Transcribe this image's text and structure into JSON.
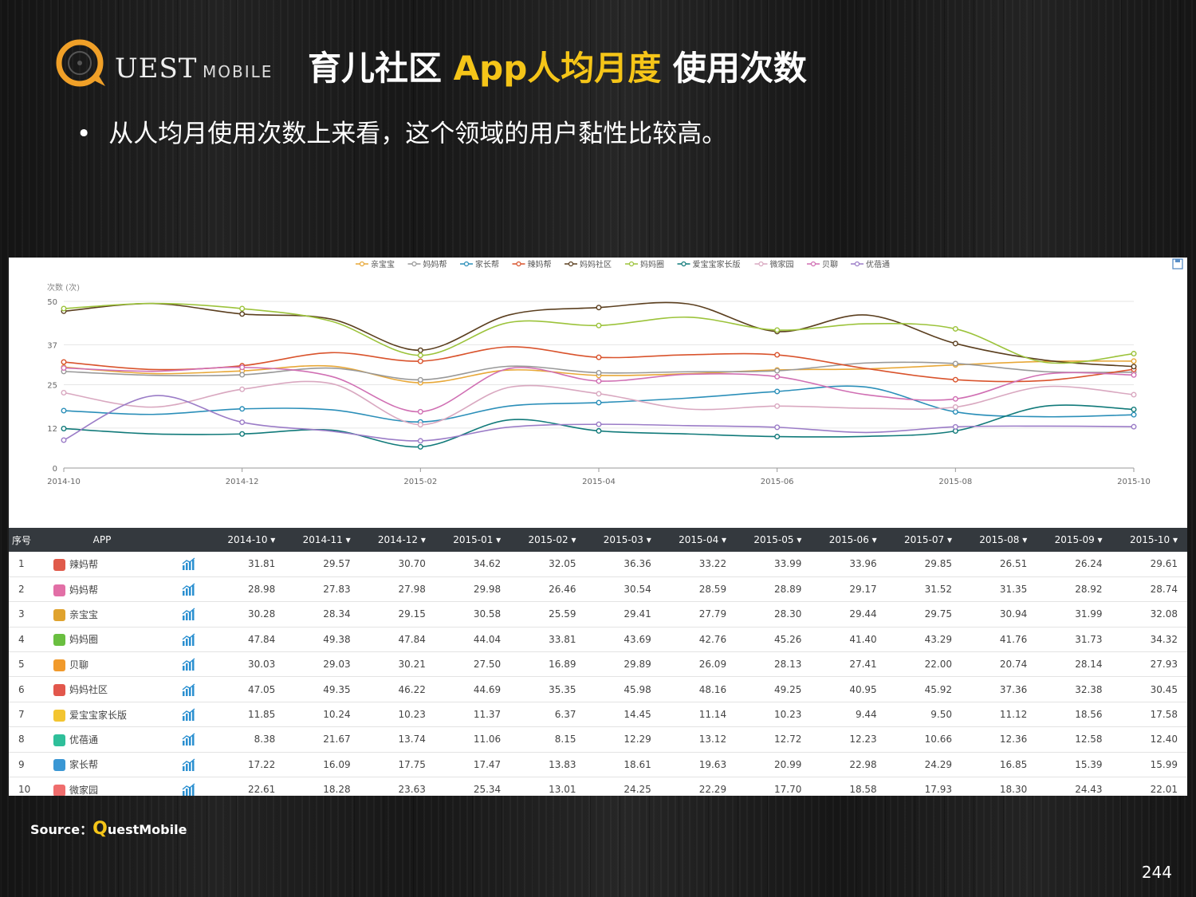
{
  "header": {
    "logo_q": "Q",
    "logo_text": "UEST",
    "logo_sub": "MOBILE",
    "title_part1": "育儿社区 ",
    "title_highlight": "App人均月度",
    "title_part2": " 使用次数"
  },
  "bullet": {
    "dot": "•",
    "text": "从人均月使用次数上来看，这个领域的用户黏性比较高。"
  },
  "colors": {
    "accent": "#f5c518",
    "table_header_bg": "#34393e"
  },
  "chart_data": {
    "type": "line",
    "ylabel": "次数 (次)",
    "yticks": [
      0,
      12,
      25,
      37,
      50
    ],
    "ylim": [
      0,
      50
    ],
    "x": [
      "2014-10",
      "2014-11",
      "2014-12",
      "2015-01",
      "2015-02",
      "2015-03",
      "2015-04",
      "2015-05",
      "2015-06",
      "2015-07",
      "2015-08",
      "2015-09",
      "2015-10"
    ],
    "xtick_labels": [
      "2014-10",
      "2014-12",
      "2015-02",
      "2015-04",
      "2015-06",
      "2015-08",
      "2015-10"
    ],
    "legend_position": "top-center",
    "series": [
      {
        "name": "亲宝宝",
        "color": "#e8a838",
        "values": [
          30.28,
          28.34,
          29.15,
          30.58,
          25.59,
          29.41,
          27.79,
          28.3,
          29.44,
          29.75,
          30.94,
          31.99,
          32.08
        ]
      },
      {
        "name": "妈妈帮",
        "color": "#999999",
        "values": [
          28.98,
          27.83,
          27.98,
          29.98,
          26.46,
          30.54,
          28.59,
          28.89,
          29.17,
          31.52,
          31.35,
          28.92,
          28.74
        ]
      },
      {
        "name": "家长帮",
        "color": "#2b8fb9",
        "values": [
          17.22,
          16.09,
          17.75,
          17.47,
          13.83,
          18.61,
          19.63,
          20.99,
          22.98,
          24.29,
          16.85,
          15.39,
          15.99
        ]
      },
      {
        "name": "辣妈帮",
        "color": "#d9532c",
        "values": [
          31.81,
          29.57,
          30.7,
          34.62,
          32.05,
          36.36,
          33.22,
          33.99,
          33.96,
          29.85,
          26.51,
          26.24,
          29.61
        ]
      },
      {
        "name": "妈妈社区",
        "color": "#5b3f1f",
        "values": [
          47.05,
          49.35,
          46.22,
          44.69,
          35.35,
          45.98,
          48.16,
          49.25,
          40.95,
          45.92,
          37.36,
          32.38,
          30.45
        ]
      },
      {
        "name": "妈妈圈",
        "color": "#9cc33b",
        "values": [
          47.84,
          49.38,
          47.84,
          44.04,
          33.81,
          43.69,
          42.76,
          45.26,
          41.4,
          43.29,
          41.76,
          31.73,
          34.32
        ]
      },
      {
        "name": "爱宝宝家长版",
        "color": "#117a7a",
        "values": [
          11.85,
          10.24,
          10.23,
          11.37,
          6.37,
          14.45,
          11.14,
          10.23,
          9.44,
          9.5,
          11.12,
          18.56,
          17.58
        ]
      },
      {
        "name": "微家园",
        "color": "#d9a8c0",
        "values": [
          22.61,
          18.28,
          23.63,
          25.34,
          13.01,
          24.25,
          22.29,
          17.7,
          18.58,
          17.93,
          18.3,
          24.43,
          22.01
        ]
      },
      {
        "name": "贝聊",
        "color": "#d06fb3",
        "values": [
          30.03,
          29.03,
          30.21,
          27.5,
          16.89,
          29.89,
          26.09,
          28.13,
          27.41,
          22.0,
          20.74,
          28.14,
          27.93
        ]
      },
      {
        "name": "优蓓通",
        "color": "#9b7cc7",
        "values": [
          8.38,
          21.67,
          13.74,
          11.06,
          8.15,
          12.29,
          13.12,
          12.72,
          12.23,
          10.66,
          12.36,
          12.58,
          12.4
        ]
      }
    ]
  },
  "table": {
    "col_index": "序号",
    "col_app": "APP",
    "months": [
      "2014-10 ▾",
      "2014-11 ▾",
      "2014-12 ▾",
      "2015-01 ▾",
      "2015-02 ▾",
      "2015-03 ▾",
      "2015-04 ▾",
      "2015-05 ▾",
      "2015-06 ▾",
      "2015-07 ▾",
      "2015-08 ▾",
      "2015-09 ▾",
      "2015-10 ▾"
    ],
    "rows": [
      {
        "idx": "1",
        "name": "辣妈帮",
        "icon": "cube-icon",
        "icon_color": "#e05a4a",
        "values": [
          "31.81",
          "29.57",
          "30.70",
          "34.62",
          "32.05",
          "36.36",
          "33.22",
          "33.99",
          "33.96",
          "29.85",
          "26.51",
          "26.24",
          "29.61"
        ]
      },
      {
        "idx": "2",
        "name": "妈妈帮",
        "icon": "bang-icon",
        "icon_color": "#e26fa6",
        "values": [
          "28.98",
          "27.83",
          "27.98",
          "29.98",
          "26.46",
          "30.54",
          "28.59",
          "28.89",
          "29.17",
          "31.52",
          "31.35",
          "28.92",
          "28.74"
        ]
      },
      {
        "idx": "3",
        "name": "亲宝宝",
        "icon": "face-icon",
        "icon_color": "#e0a32e",
        "values": [
          "30.28",
          "28.34",
          "29.15",
          "30.58",
          "25.59",
          "29.41",
          "27.79",
          "28.30",
          "29.44",
          "29.75",
          "30.94",
          "31.99",
          "32.08"
        ]
      },
      {
        "idx": "4",
        "name": "妈妈圈",
        "icon": "circle-icon",
        "icon_color": "#6abf40",
        "values": [
          "47.84",
          "49.38",
          "47.84",
          "44.04",
          "33.81",
          "43.69",
          "42.76",
          "45.26",
          "41.40",
          "43.29",
          "41.76",
          "31.73",
          "34.32"
        ]
      },
      {
        "idx": "5",
        "name": "贝聊",
        "icon": "chat-icon",
        "icon_color": "#f19a2c",
        "values": [
          "30.03",
          "29.03",
          "30.21",
          "27.50",
          "16.89",
          "29.89",
          "26.09",
          "28.13",
          "27.41",
          "22.00",
          "20.74",
          "28.14",
          "27.93"
        ]
      },
      {
        "idx": "6",
        "name": "妈妈社区",
        "icon": "mother-icon",
        "icon_color": "#e2574c",
        "values": [
          "47.05",
          "49.35",
          "46.22",
          "44.69",
          "35.35",
          "45.98",
          "48.16",
          "49.25",
          "40.95",
          "45.92",
          "37.36",
          "32.38",
          "30.45"
        ]
      },
      {
        "idx": "7",
        "name": "爱宝宝家长版",
        "icon": "baby-icon",
        "icon_color": "#f3c531",
        "values": [
          "11.85",
          "10.24",
          "10.23",
          "11.37",
          "6.37",
          "14.45",
          "11.14",
          "10.23",
          "9.44",
          "9.50",
          "11.12",
          "18.56",
          "17.58"
        ]
      },
      {
        "idx": "8",
        "name": "优蓓通",
        "icon": "ring-icon",
        "icon_color": "#2fbf9a",
        "values": [
          "8.38",
          "21.67",
          "13.74",
          "11.06",
          "8.15",
          "12.29",
          "13.12",
          "12.72",
          "12.23",
          "10.66",
          "12.36",
          "12.58",
          "12.40"
        ]
      },
      {
        "idx": "9",
        "name": "家长帮",
        "icon": "jzb-icon",
        "icon_color": "#3a97d4",
        "values": [
          "17.22",
          "16.09",
          "17.75",
          "17.47",
          "13.83",
          "18.61",
          "19.63",
          "20.99",
          "22.98",
          "24.29",
          "16.85",
          "15.39",
          "15.99"
        ]
      },
      {
        "idx": "10",
        "name": "微家园",
        "icon": "bubble-icon",
        "icon_color": "#ef6d6d",
        "values": [
          "22.61",
          "18.28",
          "23.63",
          "25.34",
          "13.01",
          "24.25",
          "22.29",
          "17.70",
          "18.58",
          "17.93",
          "18.30",
          "24.43",
          "22.01"
        ]
      }
    ]
  },
  "source": {
    "label": "Source：",
    "q": "Q",
    "rest": "uestMobile"
  },
  "page_number": "244"
}
